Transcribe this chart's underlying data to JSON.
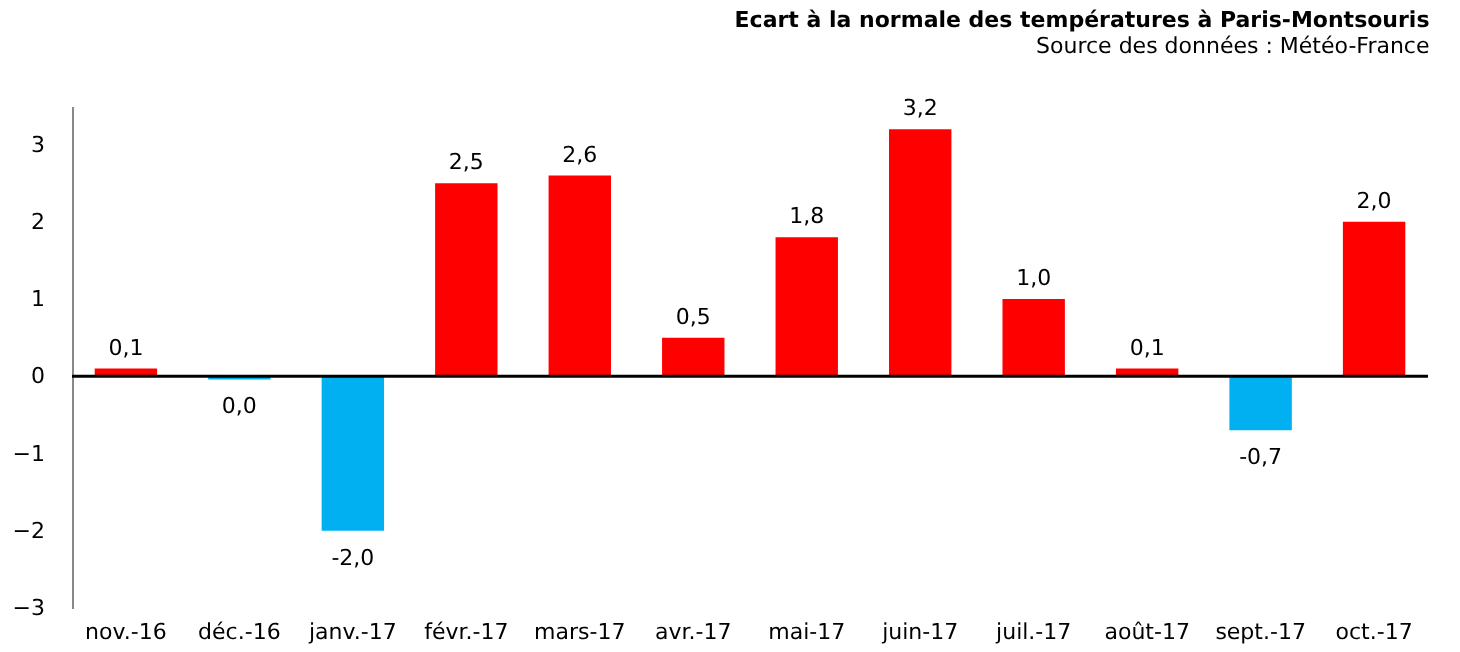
{
  "chart_data": {
    "type": "bar",
    "title": "Ecart à la normale des températures à Paris-Montsouris",
    "subtitle": "Source des données : Météo-France",
    "categories": [
      "nov.-16",
      "déc.-16",
      "janv.-17",
      "févr.-17",
      "mars-17",
      "avr.-17",
      "mai-17",
      "juin-17",
      "juil.-17",
      "août-17",
      "sept.-17",
      "oct.-17"
    ],
    "values": [
      0.1,
      -0.04,
      -2.0,
      2.5,
      2.6,
      0.5,
      1.8,
      3.2,
      1.0,
      0.1,
      -0.7,
      2.0
    ],
    "value_labels": [
      "0,1",
      "0,0",
      "-2,0",
      "2,5",
      "2,6",
      "0,5",
      "1,8",
      "3,2",
      "1,0",
      "0,1",
      "-0,7",
      "2,0"
    ],
    "colors": [
      "#ff0000",
      "#00b0f0",
      "#00b0f0",
      "#ff0000",
      "#ff0000",
      "#ff0000",
      "#ff0000",
      "#ff0000",
      "#ff0000",
      "#ff0000",
      "#00b0f0",
      "#ff0000"
    ],
    "ylim": [
      -3,
      3.5
    ],
    "yticks": [
      -3,
      -2,
      -1,
      0,
      1,
      2,
      3
    ],
    "ref_lines": [
      {
        "axis": "y",
        "value": 0,
        "color": "#000000"
      }
    ],
    "grid": false
  }
}
